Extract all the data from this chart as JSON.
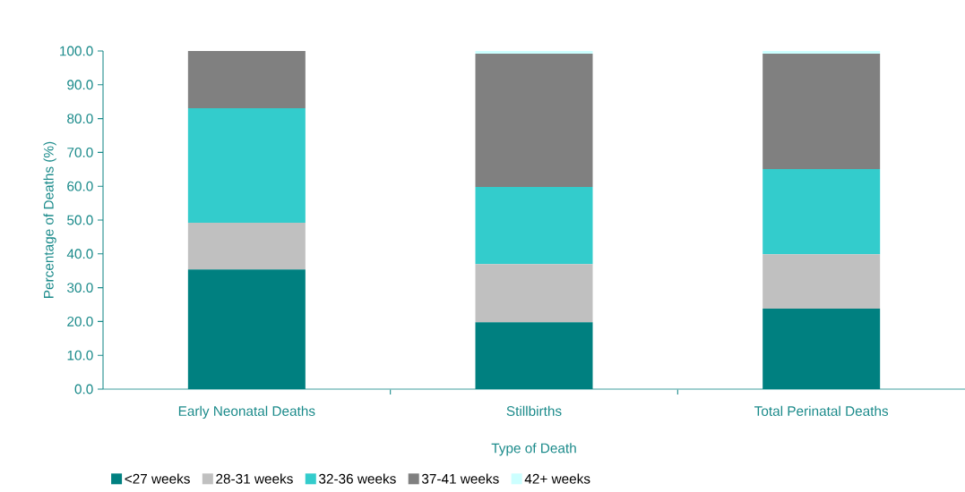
{
  "chart_data": {
    "type": "bar",
    "stacked": true,
    "xlabel": "Type of Death",
    "ylabel": "Percentage of Deaths (%)",
    "categories": [
      "Early Neonatal Deaths",
      "Stillbirths",
      "Total Perinatal Deaths"
    ],
    "series": [
      {
        "name": "<27 weeks",
        "color": "#008080",
        "values": [
          35.4,
          19.8,
          23.8
        ]
      },
      {
        "name": "28-31 weeks",
        "color": "#c0c0c0",
        "values": [
          13.8,
          17.2,
          16.1
        ]
      },
      {
        "name": "32-36 weeks",
        "color": "#33cccc",
        "values": [
          33.9,
          22.8,
          25.2
        ]
      },
      {
        "name": "37-41 weeks",
        "color": "#808080",
        "values": [
          16.9,
          39.4,
          34.1
        ]
      },
      {
        "name": "42+ weeks",
        "color": "#ccffff",
        "values": [
          0,
          0.8,
          0.8
        ]
      }
    ],
    "ylim": [
      0,
      100
    ],
    "yticks": [
      {
        "value": 0,
        "label": "0.0"
      },
      {
        "value": 10,
        "label": "10.0"
      },
      {
        "value": 20,
        "label": "20.0"
      },
      {
        "value": 30,
        "label": "30.0"
      },
      {
        "value": 40,
        "label": "40.0"
      },
      {
        "value": 50,
        "label": "50.0"
      },
      {
        "value": 60,
        "label": "60.0"
      },
      {
        "value": 70,
        "label": "70.0"
      },
      {
        "value": 80,
        "label": "80.0"
      },
      {
        "value": 90,
        "label": "90.0"
      },
      {
        "value": 100,
        "label": "100.0"
      }
    ],
    "grid": false,
    "legend": "bottom"
  }
}
